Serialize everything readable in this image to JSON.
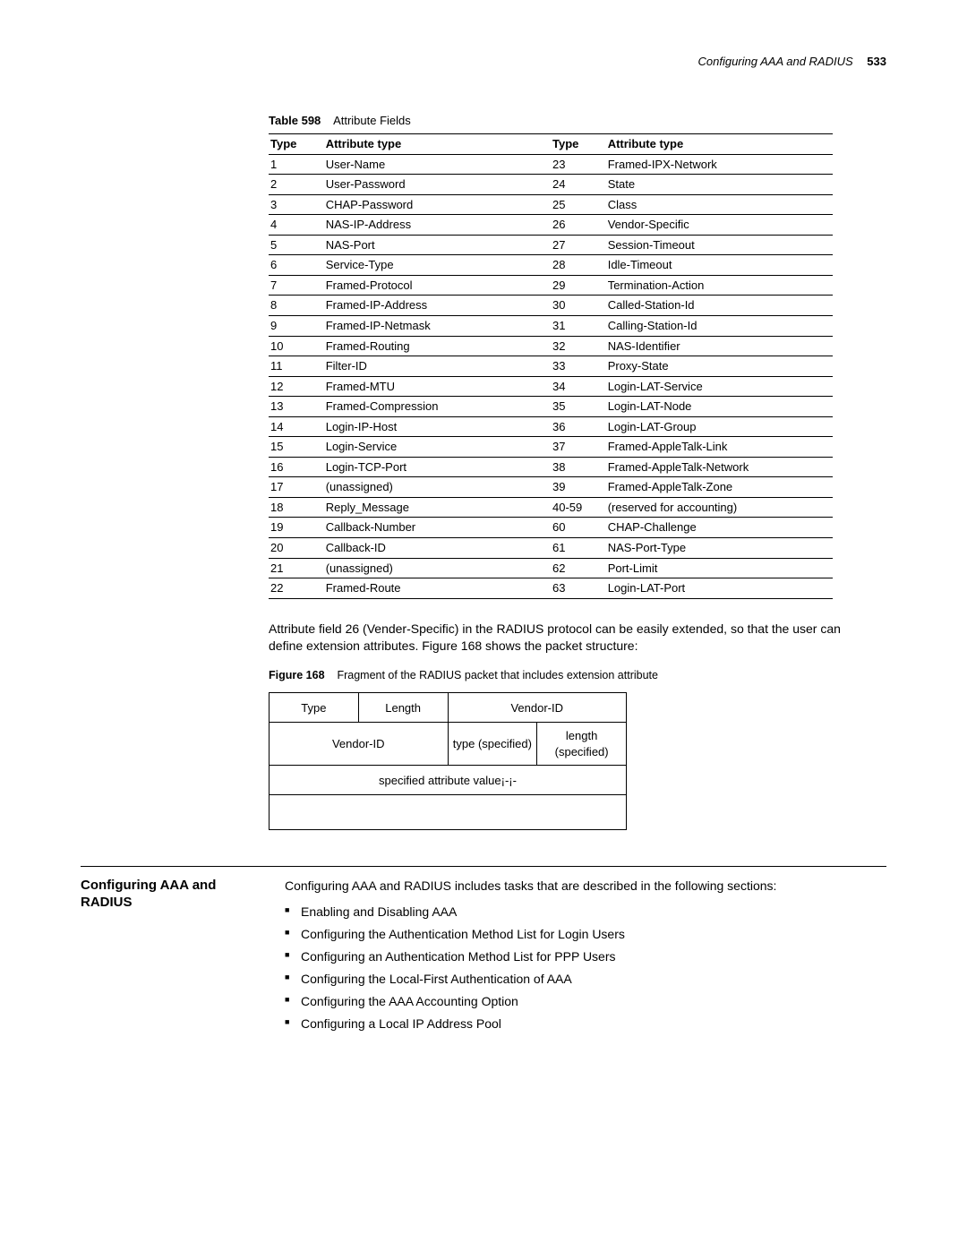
{
  "header": {
    "title": "Configuring AAA and RADIUS",
    "pagenum": "533"
  },
  "table598": {
    "caption_label": "Table 598",
    "caption_text": "Attribute Fields",
    "columns": [
      "Type",
      "Attribute type",
      "Type",
      "Attribute type"
    ],
    "rows": [
      [
        "1",
        "User-Name",
        "23",
        "Framed-IPX-Network"
      ],
      [
        "2",
        "User-Password",
        "24",
        "State"
      ],
      [
        "3",
        "CHAP-Password",
        "25",
        "Class"
      ],
      [
        "4",
        "NAS-IP-Address",
        "26",
        "Vendor-Specific"
      ],
      [
        "5",
        "NAS-Port",
        "27",
        "Session-Timeout"
      ],
      [
        "6",
        "Service-Type",
        "28",
        "Idle-Timeout"
      ],
      [
        "7",
        "Framed-Protocol",
        "29",
        "Termination-Action"
      ],
      [
        "8",
        "Framed-IP-Address",
        "30",
        "Called-Station-Id"
      ],
      [
        "9",
        "Framed-IP-Netmask",
        "31",
        "Calling-Station-Id"
      ],
      [
        "10",
        "Framed-Routing",
        "32",
        "NAS-Identifier"
      ],
      [
        "11",
        "Filter-ID",
        "33",
        "Proxy-State"
      ],
      [
        "12",
        "Framed-MTU",
        "34",
        "Login-LAT-Service"
      ],
      [
        "13",
        "Framed-Compression",
        "35",
        "Login-LAT-Node"
      ],
      [
        "14",
        "Login-IP-Host",
        "36",
        "Login-LAT-Group"
      ],
      [
        "15",
        "Login-Service",
        "37",
        "Framed-AppleTalk-Link"
      ],
      [
        "16",
        "Login-TCP-Port",
        "38",
        "Framed-AppleTalk-Network"
      ],
      [
        "17",
        "(unassigned)",
        "39",
        "Framed-AppleTalk-Zone"
      ],
      [
        "18",
        "Reply_Message",
        "40-59",
        "(reserved for accounting)"
      ],
      [
        "19",
        "Callback-Number",
        "60",
        "CHAP-Challenge"
      ],
      [
        "20",
        "Callback-ID",
        "61",
        "NAS-Port-Type"
      ],
      [
        "21",
        "(unassigned)",
        "62",
        "Port-Limit"
      ],
      [
        "22",
        "Framed-Route",
        "63",
        "Login-LAT-Port"
      ]
    ]
  },
  "para1": "Attribute field 26 (Vender-Specific) in the RADIUS protocol can be easily extended, so that the user can define extension attributes. Figure 168 shows the packet structure:",
  "figure168": {
    "caption_label": "Figure 168",
    "caption_text": "Fragment of the RADIUS packet that includes extension attribute",
    "cells": {
      "type": "Type",
      "length": "Length",
      "vendorid1": "Vendor-ID",
      "vendorid2": "Vendor-ID",
      "type_spec": "type (specified)",
      "length_spec": "length (specified)",
      "attr_value": "specified attribute value¡-¡-"
    }
  },
  "section": {
    "title": "Configuring AAA and RADIUS",
    "intro": "Configuring AAA and RADIUS includes tasks that are described in the following sections:",
    "tasks": [
      "Enabling and Disabling AAA",
      "Configuring the Authentication Method List for Login Users",
      "Configuring an Authentication Method List for PPP Users",
      "Configuring the Local-First Authentication of AAA",
      "Configuring the AAA Accounting Option",
      "Configuring a Local IP Address Pool"
    ]
  }
}
